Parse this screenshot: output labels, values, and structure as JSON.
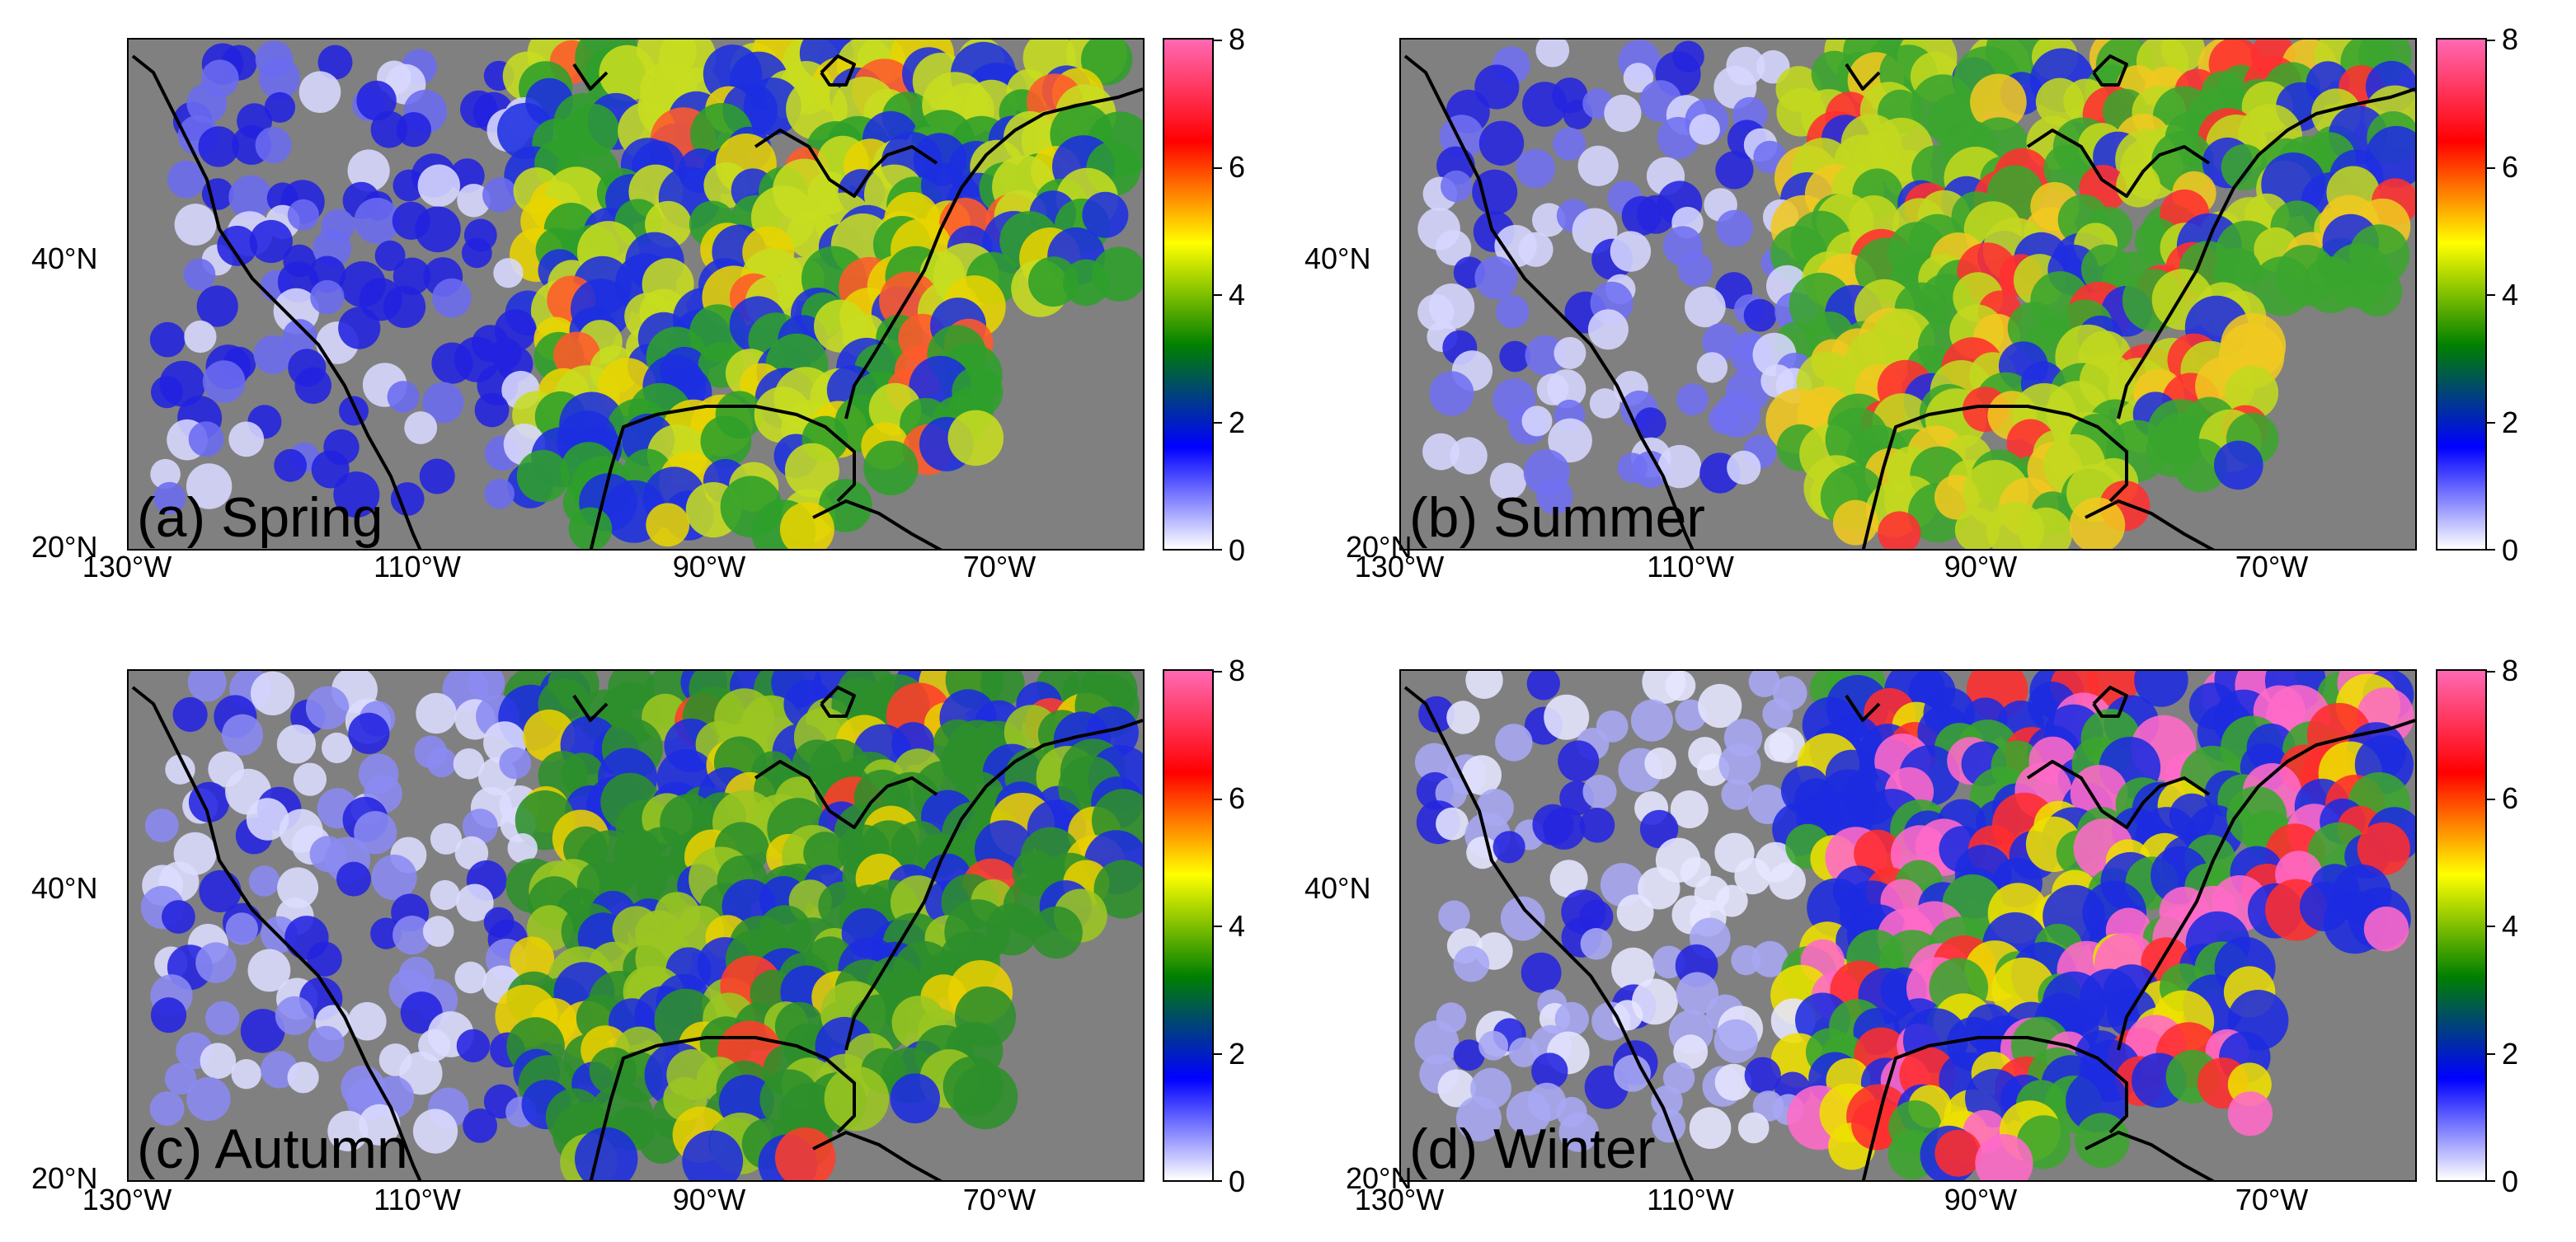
{
  "figure": {
    "colorbar": {
      "min": 0,
      "max": 8,
      "ticks": [
        "8",
        "6",
        "4",
        "2",
        "0"
      ],
      "colors": [
        "#ffffff",
        "#0000ff",
        "#008000",
        "#ffff00",
        "#ff0000",
        "#ff69b4"
      ]
    },
    "axes": {
      "lat_ticks": [
        "40°N",
        "20°N"
      ],
      "lon_ticks": [
        "130°W",
        "110°W",
        "90°W",
        "70°W"
      ]
    },
    "panels": [
      {
        "label": "(a) Spring",
        "dominant": "green-yellow east, blue west"
      },
      {
        "label": "(b) Summer",
        "dominant": "green-yellow east, red south-east"
      },
      {
        "label": "(c) Autumn",
        "dominant": "green east, white-blue west"
      },
      {
        "label": "(d) Winter",
        "dominant": "pink-red south-central, blue-white west"
      }
    ]
  },
  "chart_data": {
    "type": "heatmap",
    "title": "",
    "panels": [
      "(a) Spring",
      "(b) Summer",
      "(c) Autumn",
      "(d) Winter"
    ],
    "xlabel": "",
    "ylabel": "",
    "x_ticks": [
      "130°W",
      "110°W",
      "90°W",
      "70°W"
    ],
    "y_ticks": [
      "20°N",
      "40°N"
    ],
    "xlim": [
      -130,
      -60
    ],
    "ylim": [
      20,
      55
    ],
    "colorbar_range": [
      0,
      8
    ],
    "colorbar_ticks": [
      0,
      2,
      4,
      6,
      8
    ]
  }
}
